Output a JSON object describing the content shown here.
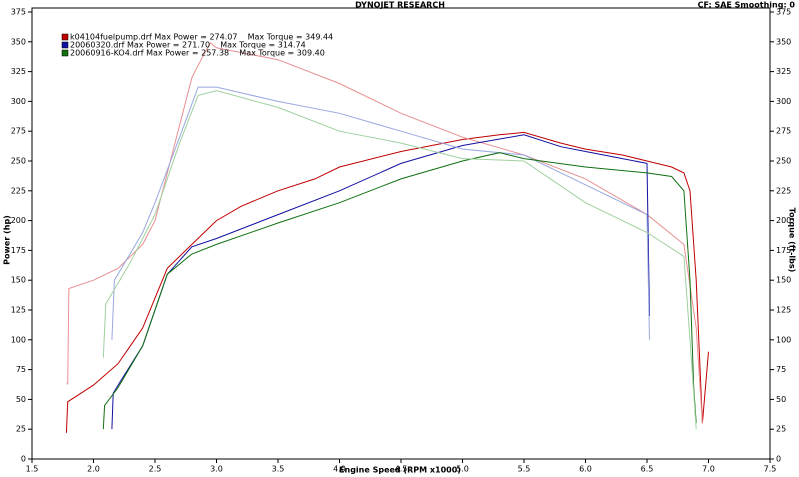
{
  "chart_data": {
    "type": "line",
    "title": "DYNOJET RESEARCH",
    "subtitle": "CF: SAE  Smoothing: 0",
    "x_label": "Engine Speed (RPM x1000)",
    "y_label": "Power (hp)",
    "y2_label": "Torque (ft-lbs)",
    "xlim": [
      1.5,
      7.5
    ],
    "xticks": [
      1.5,
      {
        "value": 2,
        "label": "2.0"
      },
      2.5,
      {
        "value": 3,
        "label": "3.0"
      },
      3.5,
      {
        "value": 4,
        "label": "4.0"
      },
      4.5,
      {
        "value": 5,
        "label": "5.0"
      },
      5.5,
      {
        "value": 6,
        "label": "6.0"
      },
      6.5,
      {
        "value": 7,
        "label": "7.0"
      },
      7.5
    ],
    "ylim": [
      0,
      375
    ],
    "yticks": [
      0,
      25,
      50,
      75,
      100,
      125,
      150,
      175,
      200,
      225,
      250,
      275,
      300,
      325,
      350,
      375
    ],
    "y2lim": [
      0,
      375
    ],
    "y2ticks": [
      0,
      25,
      50,
      75,
      100,
      125,
      150,
      175,
      200,
      225,
      250,
      275,
      300,
      325,
      350,
      375
    ],
    "grid": false,
    "legend": [
      {
        "text": "k04104fuelpump.drf Max Power = 274.07    Max Torque = 349.44",
        "color": "#c00000"
      },
      {
        "text": "20060320.drf Max Power = 271.70    Max Torque = 314.74",
        "color": "#1010a0"
      },
      {
        "text": "20060916-KO4.drf Max Power = 257.38    Max Torque = 309.40",
        "color": "#107010"
      }
    ],
    "series": [
      {
        "color": "#c00000",
        "x": [
          1.78,
          1.79,
          2.0,
          2.2,
          2.4,
          2.5,
          2.6,
          2.8,
          2.9,
          3.0,
          3.2,
          3.5,
          3.8,
          4.0,
          4.5,
          5.0,
          5.3,
          5.5,
          5.8,
          6.0,
          6.3,
          6.5,
          6.7,
          6.8,
          6.85,
          6.9,
          6.95,
          7.0
        ],
        "values": [
          22,
          48,
          62,
          80,
          110,
          135,
          160,
          180,
          190,
          200,
          212,
          225,
          235,
          245,
          258,
          268,
          272,
          274,
          265,
          260,
          255,
          250,
          245,
          240,
          225,
          150,
          30,
          90
        ]
      },
      {
        "color": "#e89090",
        "axis": "y2",
        "x": [
          1.78,
          1.79,
          1.8,
          2.0,
          2.2,
          2.4,
          2.5,
          2.6,
          2.7,
          2.8,
          2.9,
          2.95,
          3.0,
          3.5,
          4.0,
          4.5,
          5.0,
          5.5,
          6.0,
          6.5,
          6.8,
          6.9,
          6.95
        ],
        "values": [
          63,
          63,
          143,
          150,
          160,
          180,
          200,
          240,
          280,
          320,
          340,
          349,
          345,
          335,
          315,
          290,
          270,
          255,
          235,
          205,
          180,
          110,
          30
        ]
      },
      {
        "color": "#1010a0",
        "x": [
          2.15,
          2.16,
          2.2,
          2.4,
          2.5,
          2.6,
          2.8,
          3.0,
          3.5,
          4.0,
          4.5,
          5.0,
          5.5,
          5.8,
          6.0,
          6.3,
          6.5,
          6.52
        ],
        "values": [
          25,
          55,
          62,
          95,
          125,
          155,
          178,
          185,
          205,
          225,
          248,
          263,
          272,
          262,
          258,
          252,
          248,
          120
        ]
      },
      {
        "color": "#98a8e0",
        "axis": "y2",
        "x": [
          2.15,
          2.17,
          2.4,
          2.5,
          2.7,
          2.85,
          3.0,
          3.5,
          4.0,
          4.5,
          5.0,
          5.5,
          6.0,
          6.5,
          6.52
        ],
        "values": [
          100,
          150,
          190,
          215,
          270,
          312,
          312,
          300,
          290,
          275,
          260,
          255,
          230,
          205,
          100
        ]
      },
      {
        "color": "#107010",
        "x": [
          2.08,
          2.09,
          2.2,
          2.4,
          2.6,
          2.8,
          3.0,
          3.5,
          4.0,
          4.5,
          5.0,
          5.3,
          5.5,
          6.0,
          6.5,
          6.7,
          6.8,
          6.85,
          6.88,
          6.9
        ],
        "values": [
          25,
          45,
          60,
          95,
          155,
          172,
          180,
          198,
          215,
          235,
          250,
          257,
          252,
          245,
          240,
          237,
          225,
          150,
          60,
          30
        ]
      },
      {
        "color": "#a0d0a0",
        "axis": "y2",
        "x": [
          2.08,
          2.1,
          2.3,
          2.5,
          2.7,
          2.85,
          3.0,
          3.5,
          4.0,
          4.5,
          5.0,
          5.5,
          6.0,
          6.5,
          6.8,
          6.85,
          6.9
        ],
        "values": [
          85,
          130,
          165,
          205,
          265,
          305,
          309,
          295,
          275,
          265,
          252,
          250,
          215,
          190,
          170,
          100,
          25
        ]
      }
    ]
  }
}
